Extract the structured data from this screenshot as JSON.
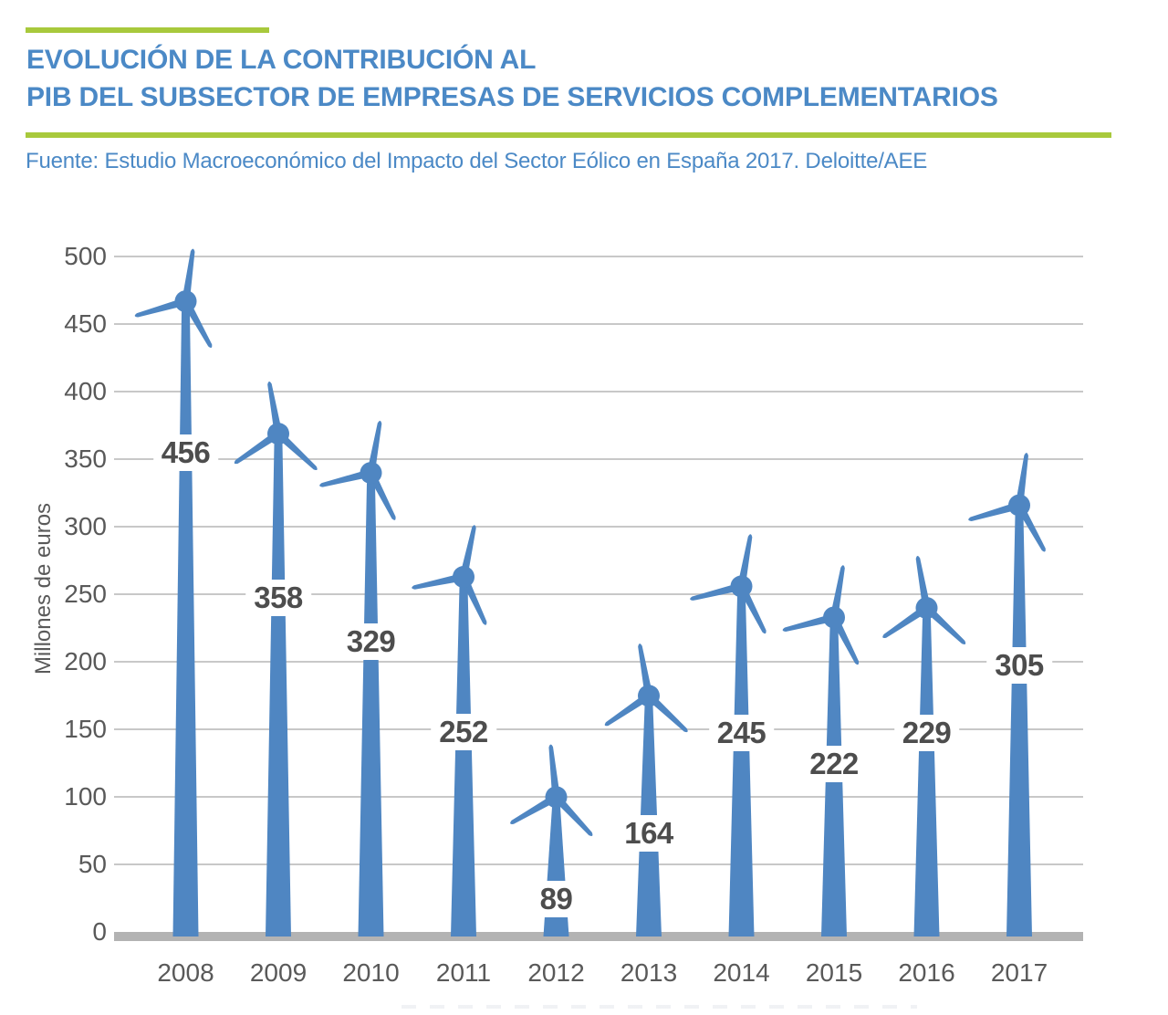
{
  "header": {
    "title_line1": "EVOLUCIÓN DE LA CONTRIBUCIÓN AL",
    "title_line2": "PIB DEL SUBSECTOR DE EMPRESAS DE SERVICIOS COMPLEMENTARIOS",
    "source": "Fuente: Estudio Macroeconómico del Impacto del Sector Eólico en España 2017. Deloitte/AEE"
  },
  "colors": {
    "title_blue": "#4b89c6",
    "turbine_blue": "#4f86c2",
    "accent_green": "#a8c93c",
    "gridline": "#c8c8c8",
    "axis_bar": "#b3b3b3",
    "tick_text": "#595959",
    "value_text": "#4d4d4d"
  },
  "chart_data": {
    "type": "bar",
    "pictogram": "wind-turbine",
    "title": "Evolución de la contribución al PIB del subsector de empresas de servicios complementarios",
    "source": "Fuente: Estudio Macroeconómico del Impacto del Sector Eólico en España 2017. Deloitte/AEE",
    "categories": [
      "2008",
      "2009",
      "2010",
      "2011",
      "2012",
      "2013",
      "2014",
      "2015",
      "2016",
      "2017"
    ],
    "values": [
      456,
      358,
      329,
      252,
      89,
      164,
      245,
      222,
      229,
      305
    ],
    "xlabel": "",
    "ylabel": "Millones de euros",
    "ylim": [
      0,
      500
    ],
    "ytick_step": 50,
    "grid": true,
    "legend": false,
    "value_label_anchor_y": [
      355,
      247,
      215,
      148,
      24,
      73,
      147,
      124,
      147,
      197
    ],
    "rotor_angle_deg": [
      8,
      -10,
      10,
      12,
      -6,
      -10,
      10,
      10,
      -10,
      8
    ]
  }
}
